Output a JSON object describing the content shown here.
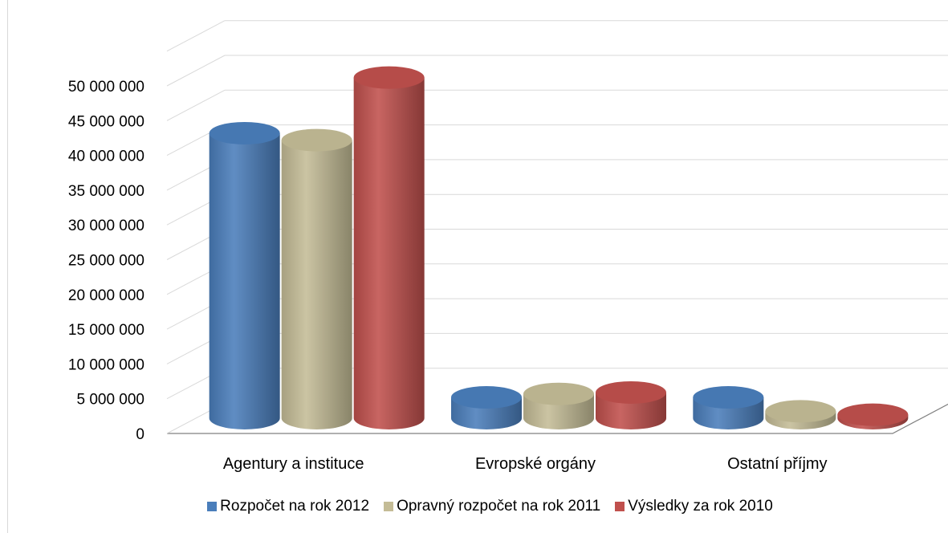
{
  "chart_data": {
    "type": "bar",
    "style": "3d-cylinder",
    "categories": [
      "Agentury a instituce",
      "Evropské orgány",
      "Ostatní příjmy"
    ],
    "series": [
      {
        "name": "Rozpočet na rok 2012",
        "color": "#4a7ebb",
        "values": [
          41000000,
          3000000,
          3000000
        ]
      },
      {
        "name": "Opravný rozpočet na rok 2011",
        "color": "#c4bc96",
        "values": [
          40000000,
          3500000,
          1000000
        ]
      },
      {
        "name": "Výsledky za rok 2010",
        "color": "#c0504d",
        "values": [
          49000000,
          3700000,
          500000
        ]
      }
    ],
    "y_ticks": [
      "0",
      "5 000 000",
      "10 000 000",
      "15 000 000",
      "20 000 000",
      "25 000 000",
      "30 000 000",
      "35 000 000",
      "40 000 000",
      "45 000 000",
      "50 000 000"
    ],
    "ylim": [
      0,
      55000000
    ],
    "grid": true,
    "legend_position": "bottom"
  }
}
